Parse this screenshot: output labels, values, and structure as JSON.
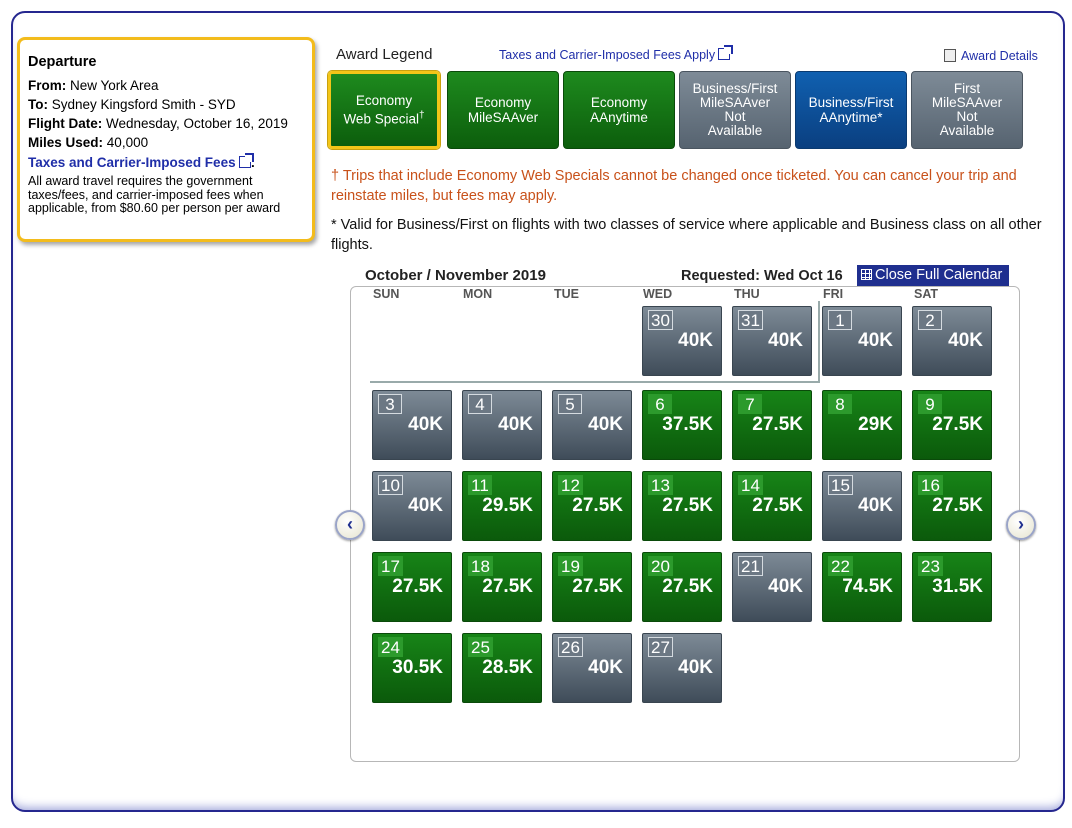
{
  "summary": {
    "heading": "Departure",
    "from_label": "From:",
    "from_value": "New York Area",
    "to_label": "To:",
    "to_value": "Sydney Kingsford Smith - SYD",
    "date_label": "Flight Date:",
    "date_value": "Wednesday, October 16, 2019",
    "miles_label": "Miles Used:",
    "miles_value": "40,000",
    "fees_link": "Taxes and Carrier-Imposed Fees",
    "fees_colon": ":",
    "fees_note": "All award travel requires the government taxes/fees, and carrier-imposed fees when applicable, from $80.60 per person per award"
  },
  "legend": {
    "title": "Award Legend",
    "taxes_link": "Taxes and Carrier-Imposed Fees Apply",
    "award_details": "Award Details",
    "items": [
      {
        "line1": "Economy",
        "line2": "Web Special",
        "mark": "†",
        "style": "green",
        "selected": true
      },
      {
        "line1": "Economy",
        "line2": "MileSAAver",
        "style": "green"
      },
      {
        "line1": "Economy",
        "line2": "AAnytime",
        "style": "green"
      },
      {
        "line1": "Business/First",
        "line2": "MileSAAver",
        "line3": "Not",
        "line4": "Available",
        "style": "grey"
      },
      {
        "line1": "Business/First",
        "line2": "AAnytime*",
        "style": "blue"
      },
      {
        "line1": "First",
        "line2": "MileSAAver",
        "line3": "Not",
        "line4": "Available",
        "style": "grey"
      }
    ]
  },
  "notes": {
    "dagger": "† Trips that include Economy Web Specials cannot be changed once ticketed. You can cancel your trip and reinstate miles, but fees may apply.",
    "star": "* Valid for Business/First on flights with two classes of service where applicable and Business class on all other flights."
  },
  "calendar": {
    "month": "October / November 2019",
    "requested": "Requested: Wed Oct 16",
    "close_label": "Close Full Calendar",
    "weekdays": [
      "SUN",
      "MON",
      "TUE",
      "WED",
      "THU",
      "FRI",
      "SAT"
    ],
    "prev_label": "‹",
    "next_label": "›",
    "days": [
      {
        "n": "30",
        "v": "40K",
        "s": "grey"
      },
      {
        "n": "31",
        "v": "40K",
        "s": "grey"
      },
      {
        "n": "1",
        "v": "40K",
        "s": "grey"
      },
      {
        "n": "2",
        "v": "40K",
        "s": "grey"
      },
      {
        "n": "3",
        "v": "40K",
        "s": "grey"
      },
      {
        "n": "4",
        "v": "40K",
        "s": "grey"
      },
      {
        "n": "5",
        "v": "40K",
        "s": "grey"
      },
      {
        "n": "6",
        "v": "37.5K",
        "s": "green"
      },
      {
        "n": "7",
        "v": "27.5K",
        "s": "green"
      },
      {
        "n": "8",
        "v": "29K",
        "s": "green"
      },
      {
        "n": "9",
        "v": "27.5K",
        "s": "green"
      },
      {
        "n": "10",
        "v": "40K",
        "s": "grey"
      },
      {
        "n": "11",
        "v": "29.5K",
        "s": "green"
      },
      {
        "n": "12",
        "v": "27.5K",
        "s": "green"
      },
      {
        "n": "13",
        "v": "27.5K",
        "s": "green"
      },
      {
        "n": "14",
        "v": "27.5K",
        "s": "green"
      },
      {
        "n": "15",
        "v": "40K",
        "s": "grey"
      },
      {
        "n": "16",
        "v": "27.5K",
        "s": "green"
      },
      {
        "n": "17",
        "v": "27.5K",
        "s": "green"
      },
      {
        "n": "18",
        "v": "27.5K",
        "s": "green"
      },
      {
        "n": "19",
        "v": "27.5K",
        "s": "green"
      },
      {
        "n": "20",
        "v": "27.5K",
        "s": "green"
      },
      {
        "n": "21",
        "v": "40K",
        "s": "grey"
      },
      {
        "n": "22",
        "v": "74.5K",
        "s": "green"
      },
      {
        "n": "23",
        "v": "31.5K",
        "s": "green"
      },
      {
        "n": "24",
        "v": "30.5K",
        "s": "green"
      },
      {
        "n": "25",
        "v": "28.5K",
        "s": "green"
      },
      {
        "n": "26",
        "v": "40K",
        "s": "grey"
      },
      {
        "n": "27",
        "v": "40K",
        "s": "grey"
      }
    ]
  },
  "colors": {
    "frame": "#25278f",
    "summary_border": "#f3bc1c",
    "available_green": "#0b5a0b",
    "unavailable_grey": "#566370",
    "link_blue": "#1f2ea8",
    "dagger_note": "#c8511a"
  }
}
